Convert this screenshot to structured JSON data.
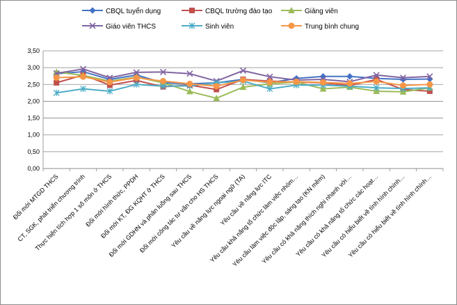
{
  "chart_data": {
    "type": "line",
    "title": "",
    "xlabel": "",
    "ylabel": "",
    "ylim": [
      0,
      3.5
    ],
    "ytick_step": 0.5,
    "y_tick_labels": [
      "0,00",
      "0,50",
      "1,00",
      "1,50",
      "2,00",
      "2,50",
      "3,00",
      "3,50"
    ],
    "grid": "horizontal",
    "legend_position": "top",
    "categories": [
      "Đổi mới MTGD THCS",
      "CT, SGK, phát triển chương trình",
      "Thực hiện tích hợp 1 số môn ở THCS",
      "Đổi mới hình thức, PPDH",
      "Đổi mới KT, ĐG KQHT ở THCS",
      "Đổi mới GDHN và phân luồng sau THCS",
      "Đổi mới công tác tư vấn cho HS THCS",
      "Yêu cầu về năng lực ngoại ngữ (TA)",
      "Yêu cầu về năng lực ITC",
      "Yêu cầu khả năng tổ chức làm việc nhóm…",
      "Yêu cầu làm việc độc lập, sáng tạo (KN mềm)",
      "Yêu cầu có khả năng thích nghi nhanh với…",
      "Yêu cầu có khả năng tổ chức các hoạt…",
      "Yêu cầu có hiểu biết về tình hình chính…",
      "Yêu cầu có hiểu biết về tình hình chính…"
    ],
    "series": [
      {
        "name": "CBQL tuyển dụng",
        "color": "#4472C4",
        "marker": "diamond",
        "values": [
          2.82,
          2.88,
          2.65,
          2.78,
          2.55,
          2.52,
          2.55,
          2.65,
          2.55,
          2.68,
          2.74,
          2.74,
          2.68,
          2.65,
          2.66
        ]
      },
      {
        "name": "CBQL trường đào tạo",
        "color": "#C0504D",
        "marker": "square",
        "values": [
          2.55,
          2.78,
          2.48,
          2.62,
          2.43,
          2.48,
          2.35,
          2.65,
          2.6,
          2.57,
          2.55,
          2.47,
          2.65,
          2.35,
          2.3
        ]
      },
      {
        "name": "Giảng viên",
        "color": "#9BBB59",
        "marker": "triangle",
        "values": [
          2.87,
          2.77,
          2.6,
          2.72,
          2.55,
          2.29,
          2.09,
          2.42,
          2.52,
          2.57,
          2.37,
          2.42,
          2.3,
          2.28,
          2.4
        ]
      },
      {
        "name": "Giáo viên THCS",
        "color": "#8064A2",
        "marker": "x",
        "values": [
          2.83,
          2.96,
          2.7,
          2.86,
          2.87,
          2.82,
          2.6,
          2.91,
          2.73,
          2.63,
          2.65,
          2.58,
          2.78,
          2.7,
          2.74
        ]
      },
      {
        "name": "Sinh viên",
        "color": "#4BACC6",
        "marker": "star",
        "values": [
          2.25,
          2.37,
          2.3,
          2.5,
          2.45,
          2.46,
          2.55,
          2.6,
          2.37,
          2.48,
          2.48,
          2.45,
          2.4,
          2.38,
          2.4
        ]
      },
      {
        "name": "Trung bình chung",
        "color": "#F79646",
        "marker": "circle",
        "values": [
          2.7,
          2.73,
          2.57,
          2.7,
          2.6,
          2.52,
          2.45,
          2.63,
          2.57,
          2.58,
          2.56,
          2.53,
          2.59,
          2.47,
          2.5
        ]
      }
    ]
  }
}
